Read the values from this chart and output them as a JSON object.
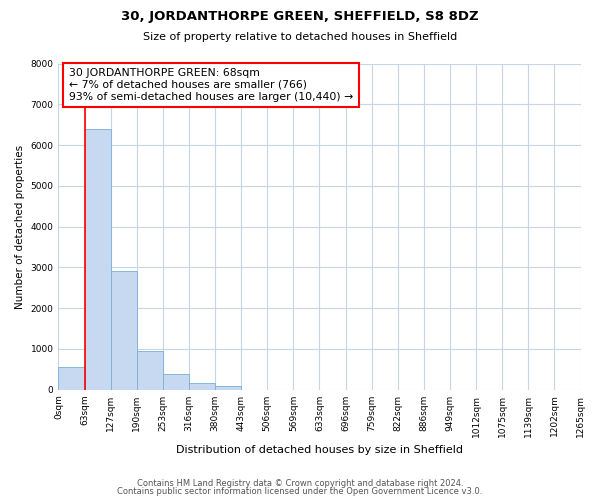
{
  "title1": "30, JORDANTHORPE GREEN, SHEFFIELD, S8 8DZ",
  "title2": "Size of property relative to detached houses in Sheffield",
  "xlabel": "Distribution of detached houses by size in Sheffield",
  "ylabel": "Number of detached properties",
  "bar_values": [
    550,
    6400,
    2920,
    960,
    380,
    175,
    90,
    0,
    0,
    0,
    0,
    0,
    0,
    0,
    0,
    0,
    0,
    0,
    0,
    0
  ],
  "tick_labels": [
    "0sqm",
    "63sqm",
    "127sqm",
    "190sqm",
    "253sqm",
    "316sqm",
    "380sqm",
    "443sqm",
    "506sqm",
    "569sqm",
    "633sqm",
    "696sqm",
    "759sqm",
    "822sqm",
    "886sqm",
    "949sqm",
    "1012sqm",
    "1075sqm",
    "1139sqm",
    "1202sqm",
    "1265sqm"
  ],
  "bar_color": "#c6d9f0",
  "bar_edge_color": "#7bafd4",
  "annotation_line1": "30 JORDANTHORPE GREEN: 68sqm",
  "annotation_line2": "← 7% of detached houses are smaller (766)",
  "annotation_line3": "93% of semi-detached houses are larger (10,440) →",
  "red_line_x": 1,
  "ylim": [
    0,
    8000
  ],
  "yticks": [
    0,
    1000,
    2000,
    3000,
    4000,
    5000,
    6000,
    7000,
    8000
  ],
  "footer_line1": "Contains HM Land Registry data © Crown copyright and database right 2024.",
  "footer_line2": "Contains public sector information licensed under the Open Government Licence v3.0.",
  "bg_color": "#ffffff",
  "grid_color": "#c8d4e8"
}
